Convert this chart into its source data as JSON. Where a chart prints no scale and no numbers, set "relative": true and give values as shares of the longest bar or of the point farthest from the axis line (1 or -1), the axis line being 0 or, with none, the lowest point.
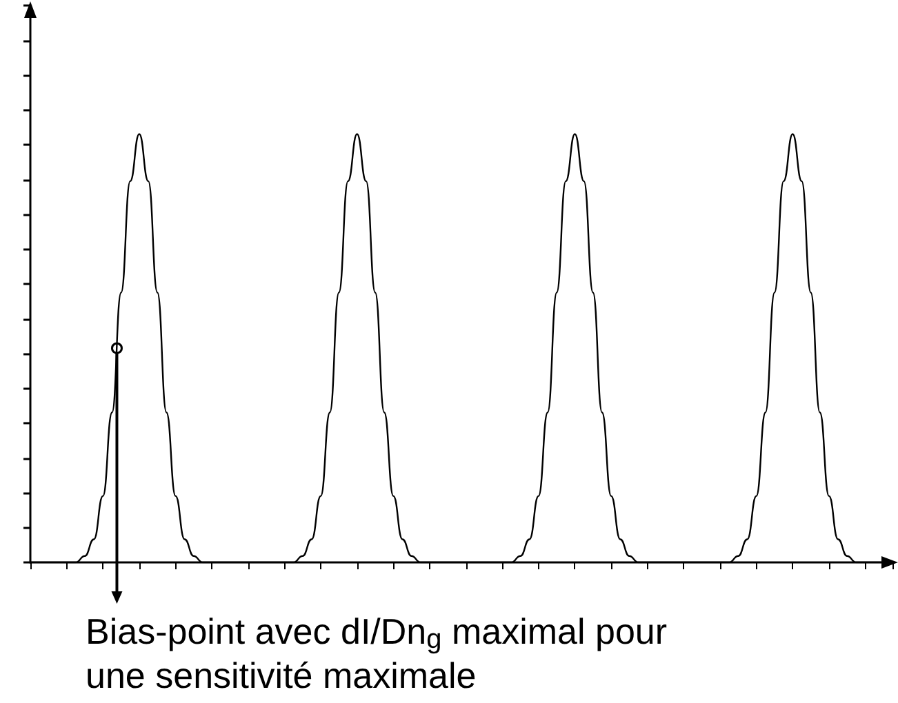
{
  "chart_data": {
    "type": "line",
    "relative": true,
    "grid": false,
    "line_style": "solid",
    "categories": [
      null,
      null,
      null,
      null,
      null,
      null,
      null,
      null,
      null,
      null,
      null,
      null,
      null,
      null,
      null,
      null,
      null,
      null,
      null,
      null,
      null,
      null,
      null,
      null,
      null,
      null,
      null,
      null,
      null,
      null,
      null,
      null,
      null,
      null,
      null,
      null,
      null,
      null,
      null,
      null,
      null,
      null,
      null,
      null,
      null,
      null,
      null,
      null,
      null,
      null,
      null,
      null,
      null,
      null,
      null,
      null,
      null,
      null,
      null,
      null,
      null,
      null,
      null,
      null,
      null,
      null,
      null,
      null,
      null,
      null,
      null,
      null,
      null,
      null,
      null,
      null,
      null,
      null,
      null,
      null,
      null,
      null,
      null,
      null,
      null,
      null,
      null,
      null,
      null,
      null,
      null,
      null,
      null,
      null,
      null,
      null
    ],
    "series": [
      {
        "color": "#000000",
        "values": [
          0,
          0,
          0,
          0,
          0,
          0,
          0.015,
          0.054,
          0.155,
          0.35,
          0.63,
          0.89,
          1,
          0.89,
          0.63,
          0.35,
          0.155,
          0.054,
          0.015,
          0,
          0,
          0,
          0,
          0,
          0,
          0,
          0,
          0,
          0,
          0,
          0.015,
          0.054,
          0.155,
          0.35,
          0.63,
          0.89,
          1,
          0.89,
          0.63,
          0.35,
          0.155,
          0.054,
          0.015,
          0,
          0,
          0,
          0,
          0,
          0,
          0,
          0,
          0,
          0,
          0,
          0.015,
          0.054,
          0.155,
          0.35,
          0.63,
          0.89,
          1,
          0.89,
          0.63,
          0.35,
          0.155,
          0.054,
          0.015,
          0,
          0,
          0,
          0,
          0,
          0,
          0,
          0,
          0,
          0,
          0,
          0.015,
          0.054,
          0.155,
          0.35,
          0.63,
          0.89,
          1,
          0.89,
          0.63,
          0.35,
          0.155,
          0.054,
          0.015,
          0,
          0,
          0,
          0,
          0
        ]
      }
    ],
    "annotations": [
      "Bias-point avec dI/Dn$_{g}$ maximal pour une sensitivité maximale"
    ]
  }
}
